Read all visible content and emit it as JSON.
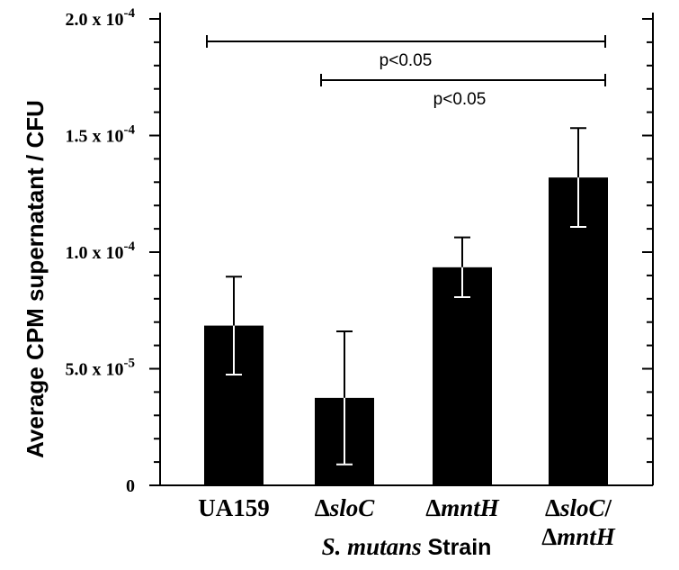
{
  "chart_data": {
    "type": "bar",
    "title": "",
    "ylabel": "Average CPM supernatant / CFU",
    "xlabel_italic": "S. mutans",
    "xlabel_rest": " Strain",
    "ylim": [
      0,
      0.0002
    ],
    "yticks": [
      {
        "value": 0,
        "label": "0"
      },
      {
        "value": 5e-05,
        "label": "5.0 x 10",
        "exp": "-5"
      },
      {
        "value": 0.0001,
        "label": "1.0 x 10",
        "exp": "-4"
      },
      {
        "value": 0.00015,
        "label": "1.5 x 10",
        "exp": "-4"
      },
      {
        "value": 0.0002,
        "label": "2.0 x 10",
        "exp": "-4"
      }
    ],
    "minor_step": 1e-05,
    "categories": [
      {
        "prefix": "",
        "italic": "",
        "plain": "UA159",
        "line2_prefix": "",
        "line2_italic": ""
      },
      {
        "prefix": "Δ",
        "italic": "sloC",
        "plain": "",
        "line2_prefix": "",
        "line2_italic": ""
      },
      {
        "prefix": "Δ",
        "italic": "mntH",
        "plain": "",
        "line2_prefix": "",
        "line2_italic": ""
      },
      {
        "prefix": "Δ",
        "italic": "sloC",
        "plain": "/",
        "line2_prefix": "Δ",
        "line2_italic": "mntH"
      }
    ],
    "values": [
      6.85e-05,
      3.75e-05,
      9.35e-05,
      0.000132
    ],
    "errors": [
      2.1e-05,
      2.85e-05,
      1.28e-05,
      2.12e-05
    ],
    "significance": [
      {
        "from": 0,
        "to": 3,
        "label": "p<0.05"
      },
      {
        "from": 1,
        "to": 3,
        "label": "p<0.05"
      }
    ],
    "colors": {
      "bar": "#000000",
      "error_bar_inside": "#ffffff",
      "axis": "#000000"
    }
  }
}
